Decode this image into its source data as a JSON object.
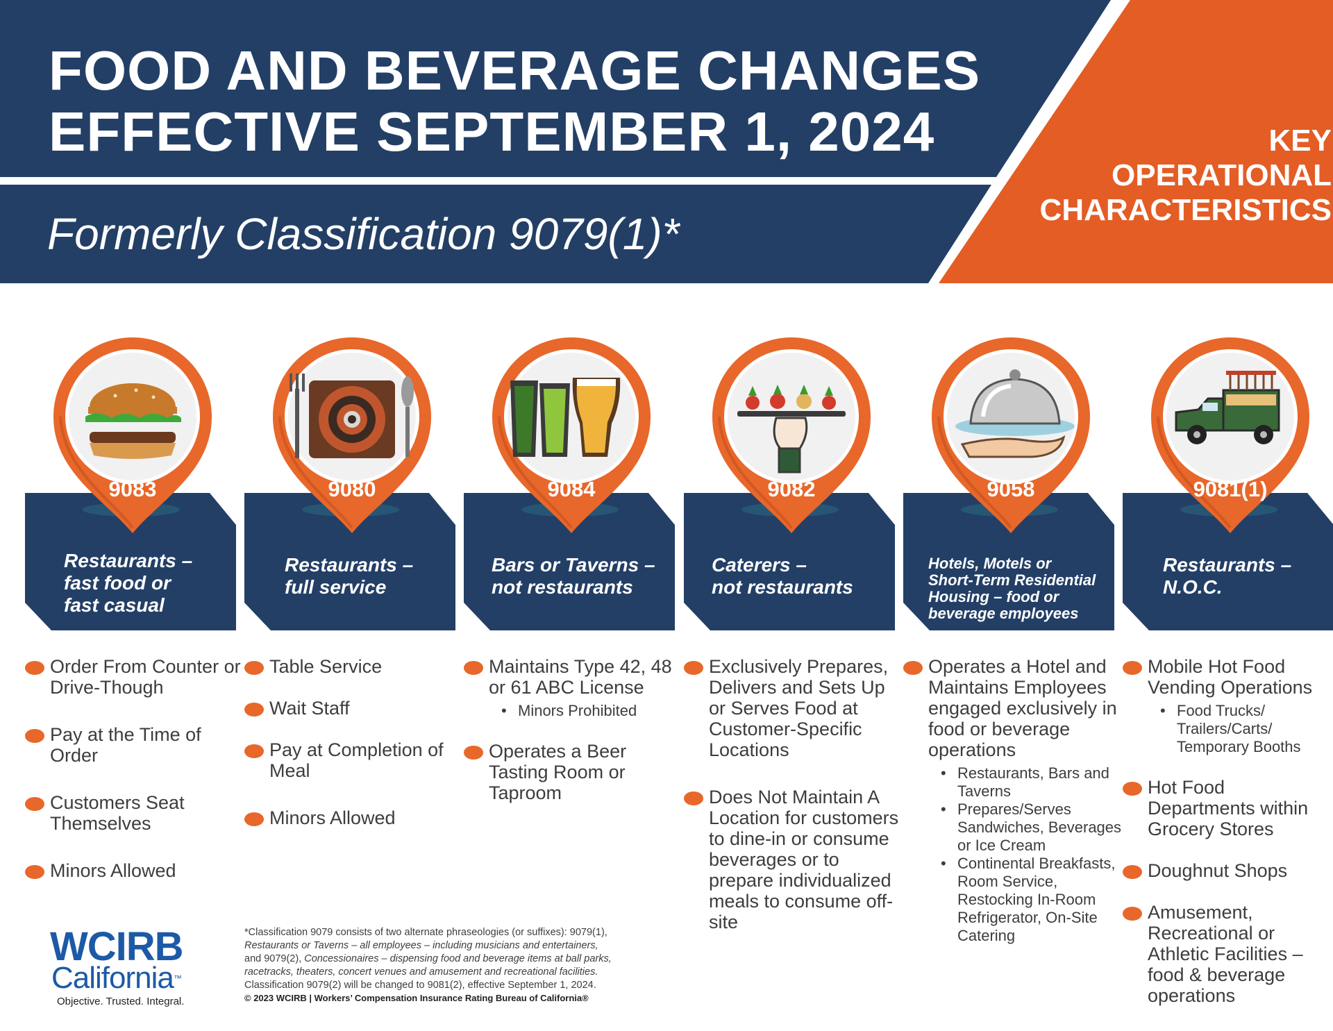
{
  "header": {
    "title_line1": "FOOD AND BEVERAGE CHANGES",
    "title_line2": "EFFECTIVE SEPTEMBER 1, 2024",
    "subtitle": "Formerly Classification 9079(1)*",
    "key_line1": "KEY",
    "key_line2": "OPERATIONAL",
    "key_line3": "CHARACTERISTICS"
  },
  "colors": {
    "navy": "#233f66",
    "orange": "#e35d25",
    "pin_orange": "#e8672a",
    "text_gray": "#3d3d3d",
    "logo_blue": "#1d5aa6"
  },
  "columns": [
    {
      "code": "9083",
      "icon": "burger-icon",
      "title_lines": [
        "Restaurants –",
        "fast food or",
        "fast casual"
      ],
      "items": [
        {
          "text": "Order From Counter or Drive-Though",
          "sub": []
        },
        {
          "text": "Pay at the Time of Order",
          "sub": []
        },
        {
          "text": "Customers Seat Themselves",
          "sub": []
        },
        {
          "text": "Minors Allowed",
          "sub": []
        }
      ]
    },
    {
      "code": "9080",
      "icon": "place-setting-icon",
      "title_lines": [
        "Restaurants –",
        "full service"
      ],
      "items": [
        {
          "text": "Table Service",
          "sub": []
        },
        {
          "text": "Wait Staff",
          "sub": []
        },
        {
          "text": "Pay at Completion of Meal",
          "sub": []
        },
        {
          "text": "Minors Allowed",
          "sub": []
        }
      ]
    },
    {
      "code": "9084",
      "icon": "beer-glasses-icon",
      "title_lines": [
        "Bars or Taverns –",
        "not restaurants"
      ],
      "items": [
        {
          "text": "Maintains Type 42, 48 or 61 ABC License",
          "sub": [
            "Minors Prohibited"
          ]
        },
        {
          "text": "Operates a Beer Tasting Room or Taproom",
          "sub": []
        }
      ]
    },
    {
      "code": "9082",
      "icon": "serving-tray-icon",
      "title_lines": [
        "Caterers –",
        "not restaurants"
      ],
      "items": [
        {
          "text": "Exclusively Prepares, Delivers and Sets Up or Serves Food at Customer-Specific Locations",
          "sub": []
        },
        {
          "text": "Does Not Maintain A Location for customers to dine-in or consume beverages or to prepare individualized meals to consume off-site",
          "sub": []
        }
      ]
    },
    {
      "code": "9058",
      "icon": "cloche-icon",
      "title_lines": [
        "Hotels, Motels or",
        "Short-Term Residential",
        "Housing – food or",
        "beverage employees"
      ],
      "items": [
        {
          "text": "Operates a Hotel and Maintains Employees engaged exclusively in food or beverage operations",
          "sub": [
            "Restaurants, Bars and Taverns",
            "Prepares/Serves Sandwiches, Beverages or Ice Cream",
            "Continental Breakfasts, Room Service, Restocking In-Room Refrigerator, On-Site Catering"
          ]
        }
      ]
    },
    {
      "code": "9081(1)",
      "icon": "food-truck-icon",
      "title_lines": [
        "Restaurants –",
        "N.O.C."
      ],
      "items": [
        {
          "text": "Mobile Hot Food Vending Operations",
          "sub": [
            "Food Trucks/ Trailers/Carts/ Temporary Booths"
          ]
        },
        {
          "text": "Hot Food Departments within Grocery Stores",
          "sub": []
        },
        {
          "text": "Doughnut Shops",
          "sub": []
        },
        {
          "text": "Amusement, Recreational or Athletic Facilities – food & beverage operations",
          "sub": []
        }
      ]
    }
  ],
  "footer": {
    "logo_main": "WCIRB",
    "logo_sub": "California",
    "logo_tm": "™",
    "logo_tagline": "Objective. Trusted. Integral.",
    "footnote_1": "*Classification 9079 consists of two alternate phraseologies (or suffixes): 9079(1),",
    "footnote_2": "Restaurants or Taverns – all employees – including musicians and entertainers,",
    "footnote_3a": "and 9079(2),",
    "footnote_3b": "Concessionaires – dispensing food and beverage items at ball parks,",
    "footnote_4": "racetracks, theaters, concert venues and amusement and recreational facilities.",
    "footnote_5": "Classification 9079(2) will be changed to 9081(2), effective September 1, 2024.",
    "copyright": "© 2023 WCIRB | Workers’ Compensation Insurance Rating Bureau of California®"
  }
}
